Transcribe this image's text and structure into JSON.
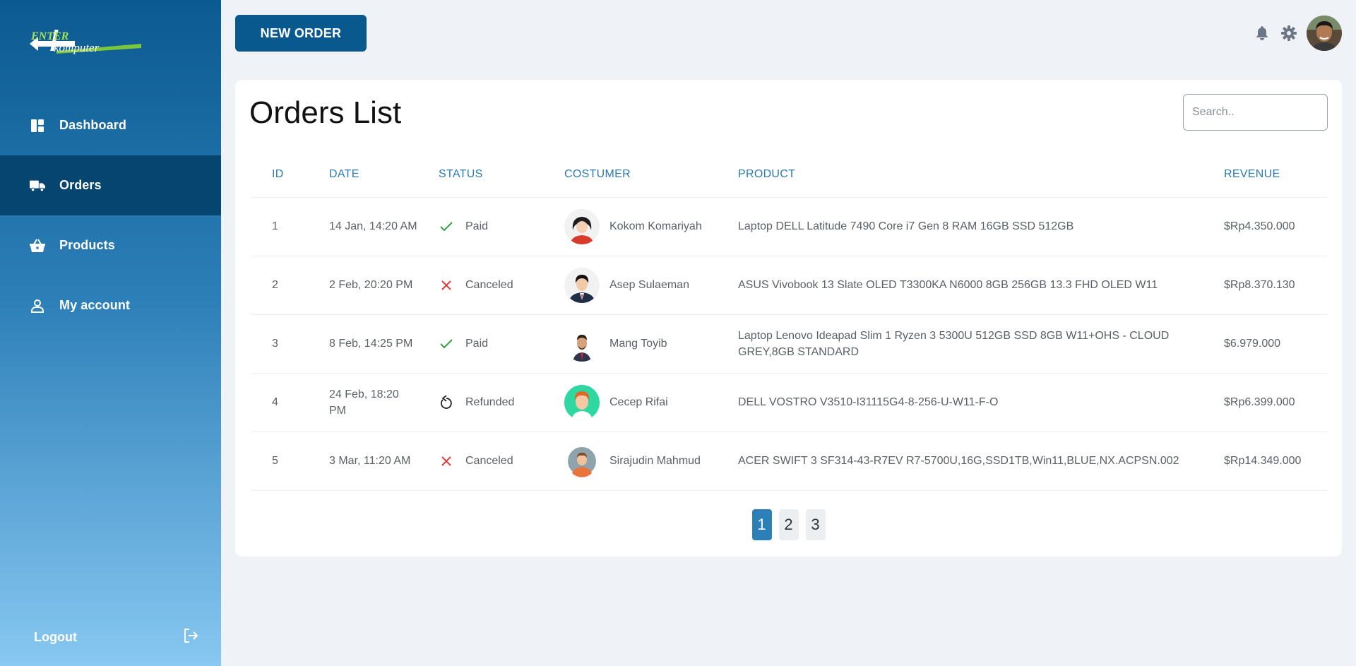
{
  "brand": {
    "logo_top": "ENTER",
    "logo_bottom": "komputer"
  },
  "sidebar": {
    "items": [
      {
        "label": "Dashboard",
        "icon": "dashboard-icon",
        "active": false
      },
      {
        "label": "Orders",
        "icon": "truck-icon",
        "active": true
      },
      {
        "label": "Products",
        "icon": "basket-icon",
        "active": false
      },
      {
        "label": "My account",
        "icon": "user-icon",
        "active": false
      }
    ],
    "logout_label": "Logout"
  },
  "header": {
    "new_order_label": "NEW ORDER"
  },
  "orders": {
    "title": "Orders List",
    "search_placeholder": "Search..",
    "columns": [
      "ID",
      "DATE",
      "STATUS",
      "COSTUMER",
      "PRODUCT",
      "REVENUE"
    ],
    "rows": [
      {
        "id": "1",
        "date": "14 Jan, 14:20 AM",
        "status": "Paid",
        "status_icon": "check-icon",
        "customer": "Kokom Komariyah",
        "product": "Laptop DELL Latitude 7490 Core i7 Gen 8 RAM 16GB SSD 512GB",
        "revenue": "$Rp4.350.000"
      },
      {
        "id": "2",
        "date": "2 Feb, 20:20 PM",
        "status": "Canceled",
        "status_icon": "x-icon",
        "customer": "Asep Sulaeman",
        "product": "ASUS Vivobook 13 Slate OLED T3300KA N6000 8GB 256GB 13.3 FHD OLED W11",
        "revenue": "$Rp8.370.130"
      },
      {
        "id": "3",
        "date": "8 Feb, 14:25 PM",
        "status": "Paid",
        "status_icon": "check-icon",
        "customer": "Mang Toyib",
        "product": "Laptop Lenovo Ideapad Slim 1 Ryzen 3 5300U 512GB SSD 8GB W11+OHS - CLOUD GREY,8GB STANDARD",
        "revenue": "$6.979.000"
      },
      {
        "id": "4",
        "date": "24 Feb, 18:20 PM",
        "status": "Refunded",
        "status_icon": "refund-icon",
        "customer": "Cecep Rifai",
        "product": "DELL VOSTRO V3510-I31115G4-8-256-U-W11-F-O",
        "revenue": "$Rp6.399.000"
      },
      {
        "id": "5",
        "date": "3 Mar, 11:20 AM",
        "status": "Canceled",
        "status_icon": "x-icon",
        "customer": "Sirajudin Mahmud",
        "product": "ACER SWIFT 3 SF314-43-R7EV R7-5700U,16G,SSD1TB,Win11,BLUE,NX.ACPSN.002",
        "revenue": "$Rp14.349.000"
      }
    ],
    "pages": [
      "1",
      "2",
      "3"
    ],
    "current_page": "1"
  },
  "colors": {
    "paid": "#2e9e3e",
    "canceled": "#e53935",
    "refunded": "#333333",
    "accent": "#2d7fb8"
  }
}
